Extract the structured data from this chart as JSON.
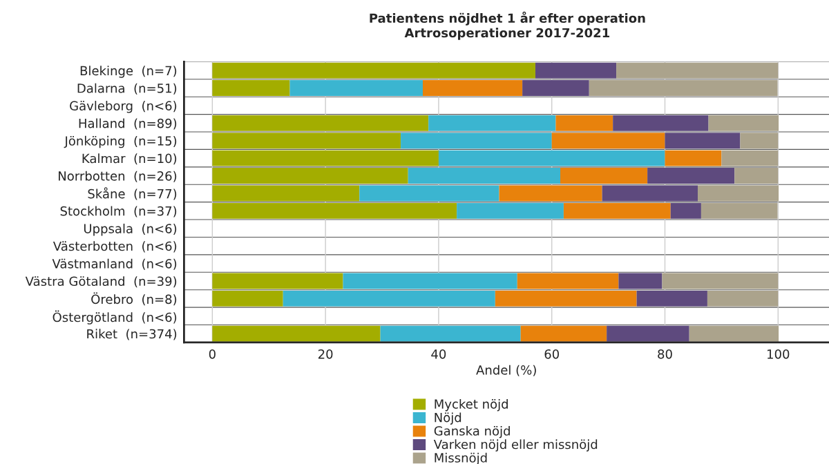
{
  "chart_data": {
    "type": "bar",
    "orientation": "horizontal",
    "stacked": true,
    "title": "Patientens nöjdhet 1 år efter operation",
    "subtitle": "Artrosoperationer 2017-2021",
    "xlabel": "Andel (%)",
    "categories": [
      "Blekinge  (n=7)",
      "Dalarna  (n=51)",
      "Gävleborg  (n<6)",
      "Halland  (n=89)",
      "Jönköping  (n=15)",
      "Kalmar  (n=10)",
      "Norrbotten  (n=26)",
      "Skåne  (n=77)",
      "Stockholm  (n=37)",
      "Uppsala  (n<6)",
      "Västerbotten  (n<6)",
      "Västmanland  (n<6)",
      "Västra Götaland  (n=39)",
      "Örebro  (n=8)",
      "Östergötland  (n<6)",
      "Riket  (n=374)"
    ],
    "series": [
      {
        "name": "Mycket nöjd",
        "color": "#a3ad00",
        "values": [
          57.1,
          13.7,
          null,
          38.2,
          33.3,
          40,
          34.6,
          26.0,
          43.2,
          null,
          null,
          null,
          23.1,
          12.5,
          null,
          29.7
        ]
      },
      {
        "name": "Nöjd",
        "color": "#3bb5d0",
        "values": [
          0,
          23.5,
          null,
          22.5,
          26.7,
          40,
          26.9,
          24.7,
          18.9,
          null,
          null,
          null,
          30.8,
          37.5,
          null,
          24.8
        ]
      },
      {
        "name": "Ganska nöjd",
        "color": "#e8820c",
        "values": [
          0,
          17.6,
          null,
          10.1,
          20.0,
          10,
          15.4,
          18.2,
          18.9,
          null,
          null,
          null,
          17.9,
          25.0,
          null,
          15.2
        ]
      },
      {
        "name": "Varken nöjd eller missnöjd",
        "color": "#5e4a7e",
        "values": [
          14.3,
          11.8,
          null,
          16.9,
          13.3,
          0,
          15.4,
          16.9,
          5.4,
          null,
          null,
          null,
          7.7,
          12.5,
          null,
          14.6
        ]
      },
      {
        "name": "Missnöjd",
        "color": "#aba38c",
        "values": [
          28.6,
          33.3,
          null,
          12.4,
          6.7,
          10,
          7.7,
          14.3,
          13.5,
          null,
          null,
          null,
          20.5,
          12.5,
          null,
          15.8
        ]
      }
    ],
    "xlim": [
      -5,
      109
    ],
    "xticks": [
      0,
      20,
      40,
      60,
      80,
      100
    ],
    "grid": "x",
    "legend": "bottom"
  }
}
